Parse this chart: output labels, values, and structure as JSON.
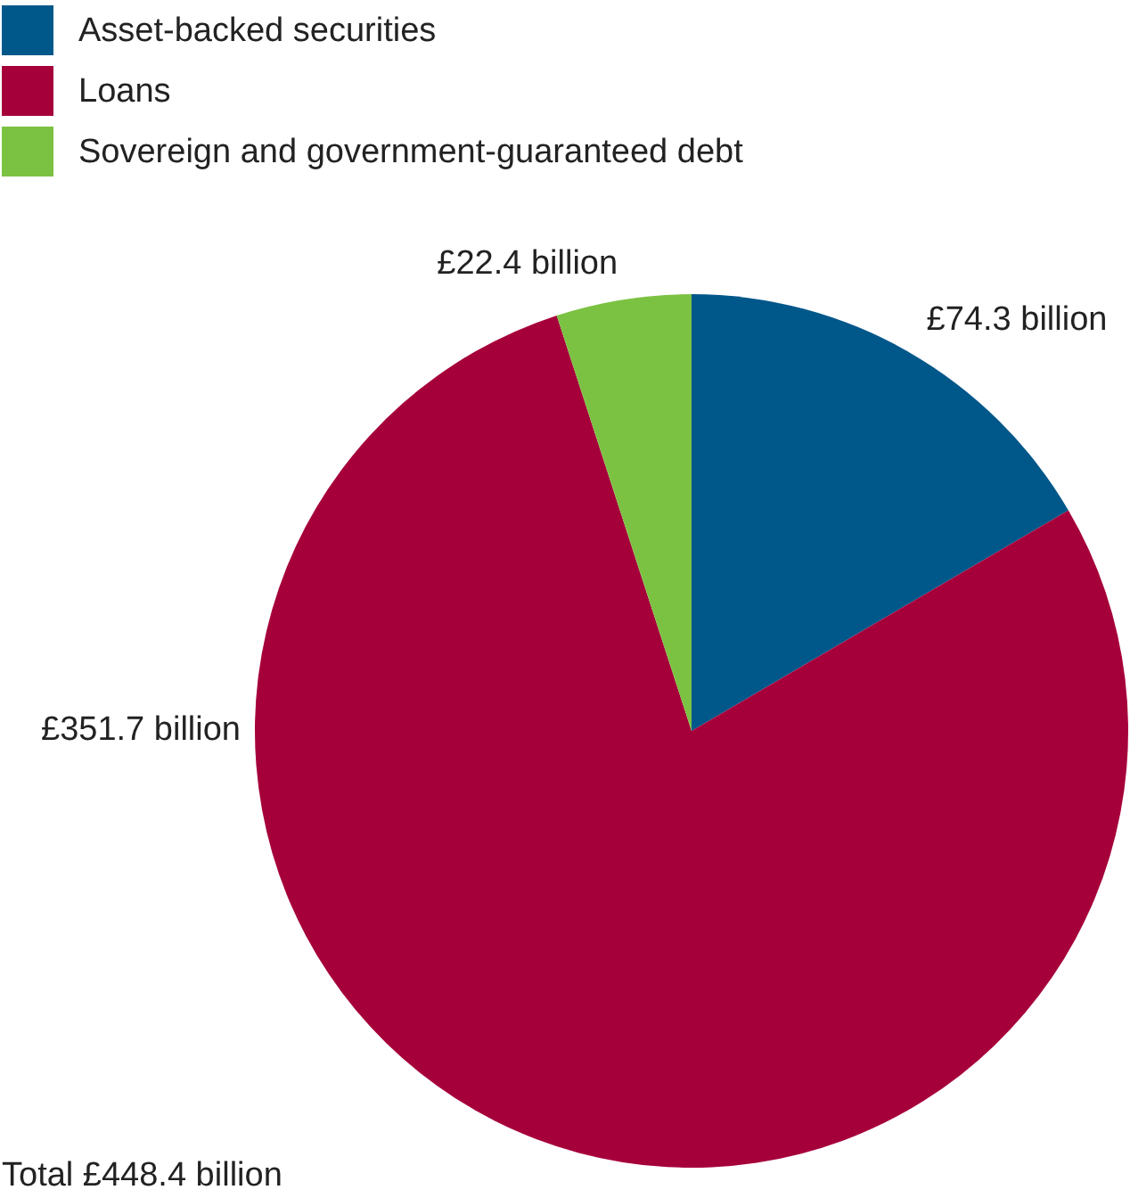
{
  "chart_data": {
    "type": "pie",
    "categories": [
      "Asset-backed securities",
      "Loans",
      "Sovereign and government-guaranteed debt"
    ],
    "values": [
      74.3,
      351.7,
      22.4
    ],
    "colors": [
      "#00578a",
      "#a6003b",
      "#7cc242"
    ],
    "value_labels": [
      "£74.3 billion",
      "£351.7 billion",
      "£22.4 billion"
    ],
    "legend": "top left",
    "annotations": [
      "Total £448.4 billion"
    ]
  }
}
